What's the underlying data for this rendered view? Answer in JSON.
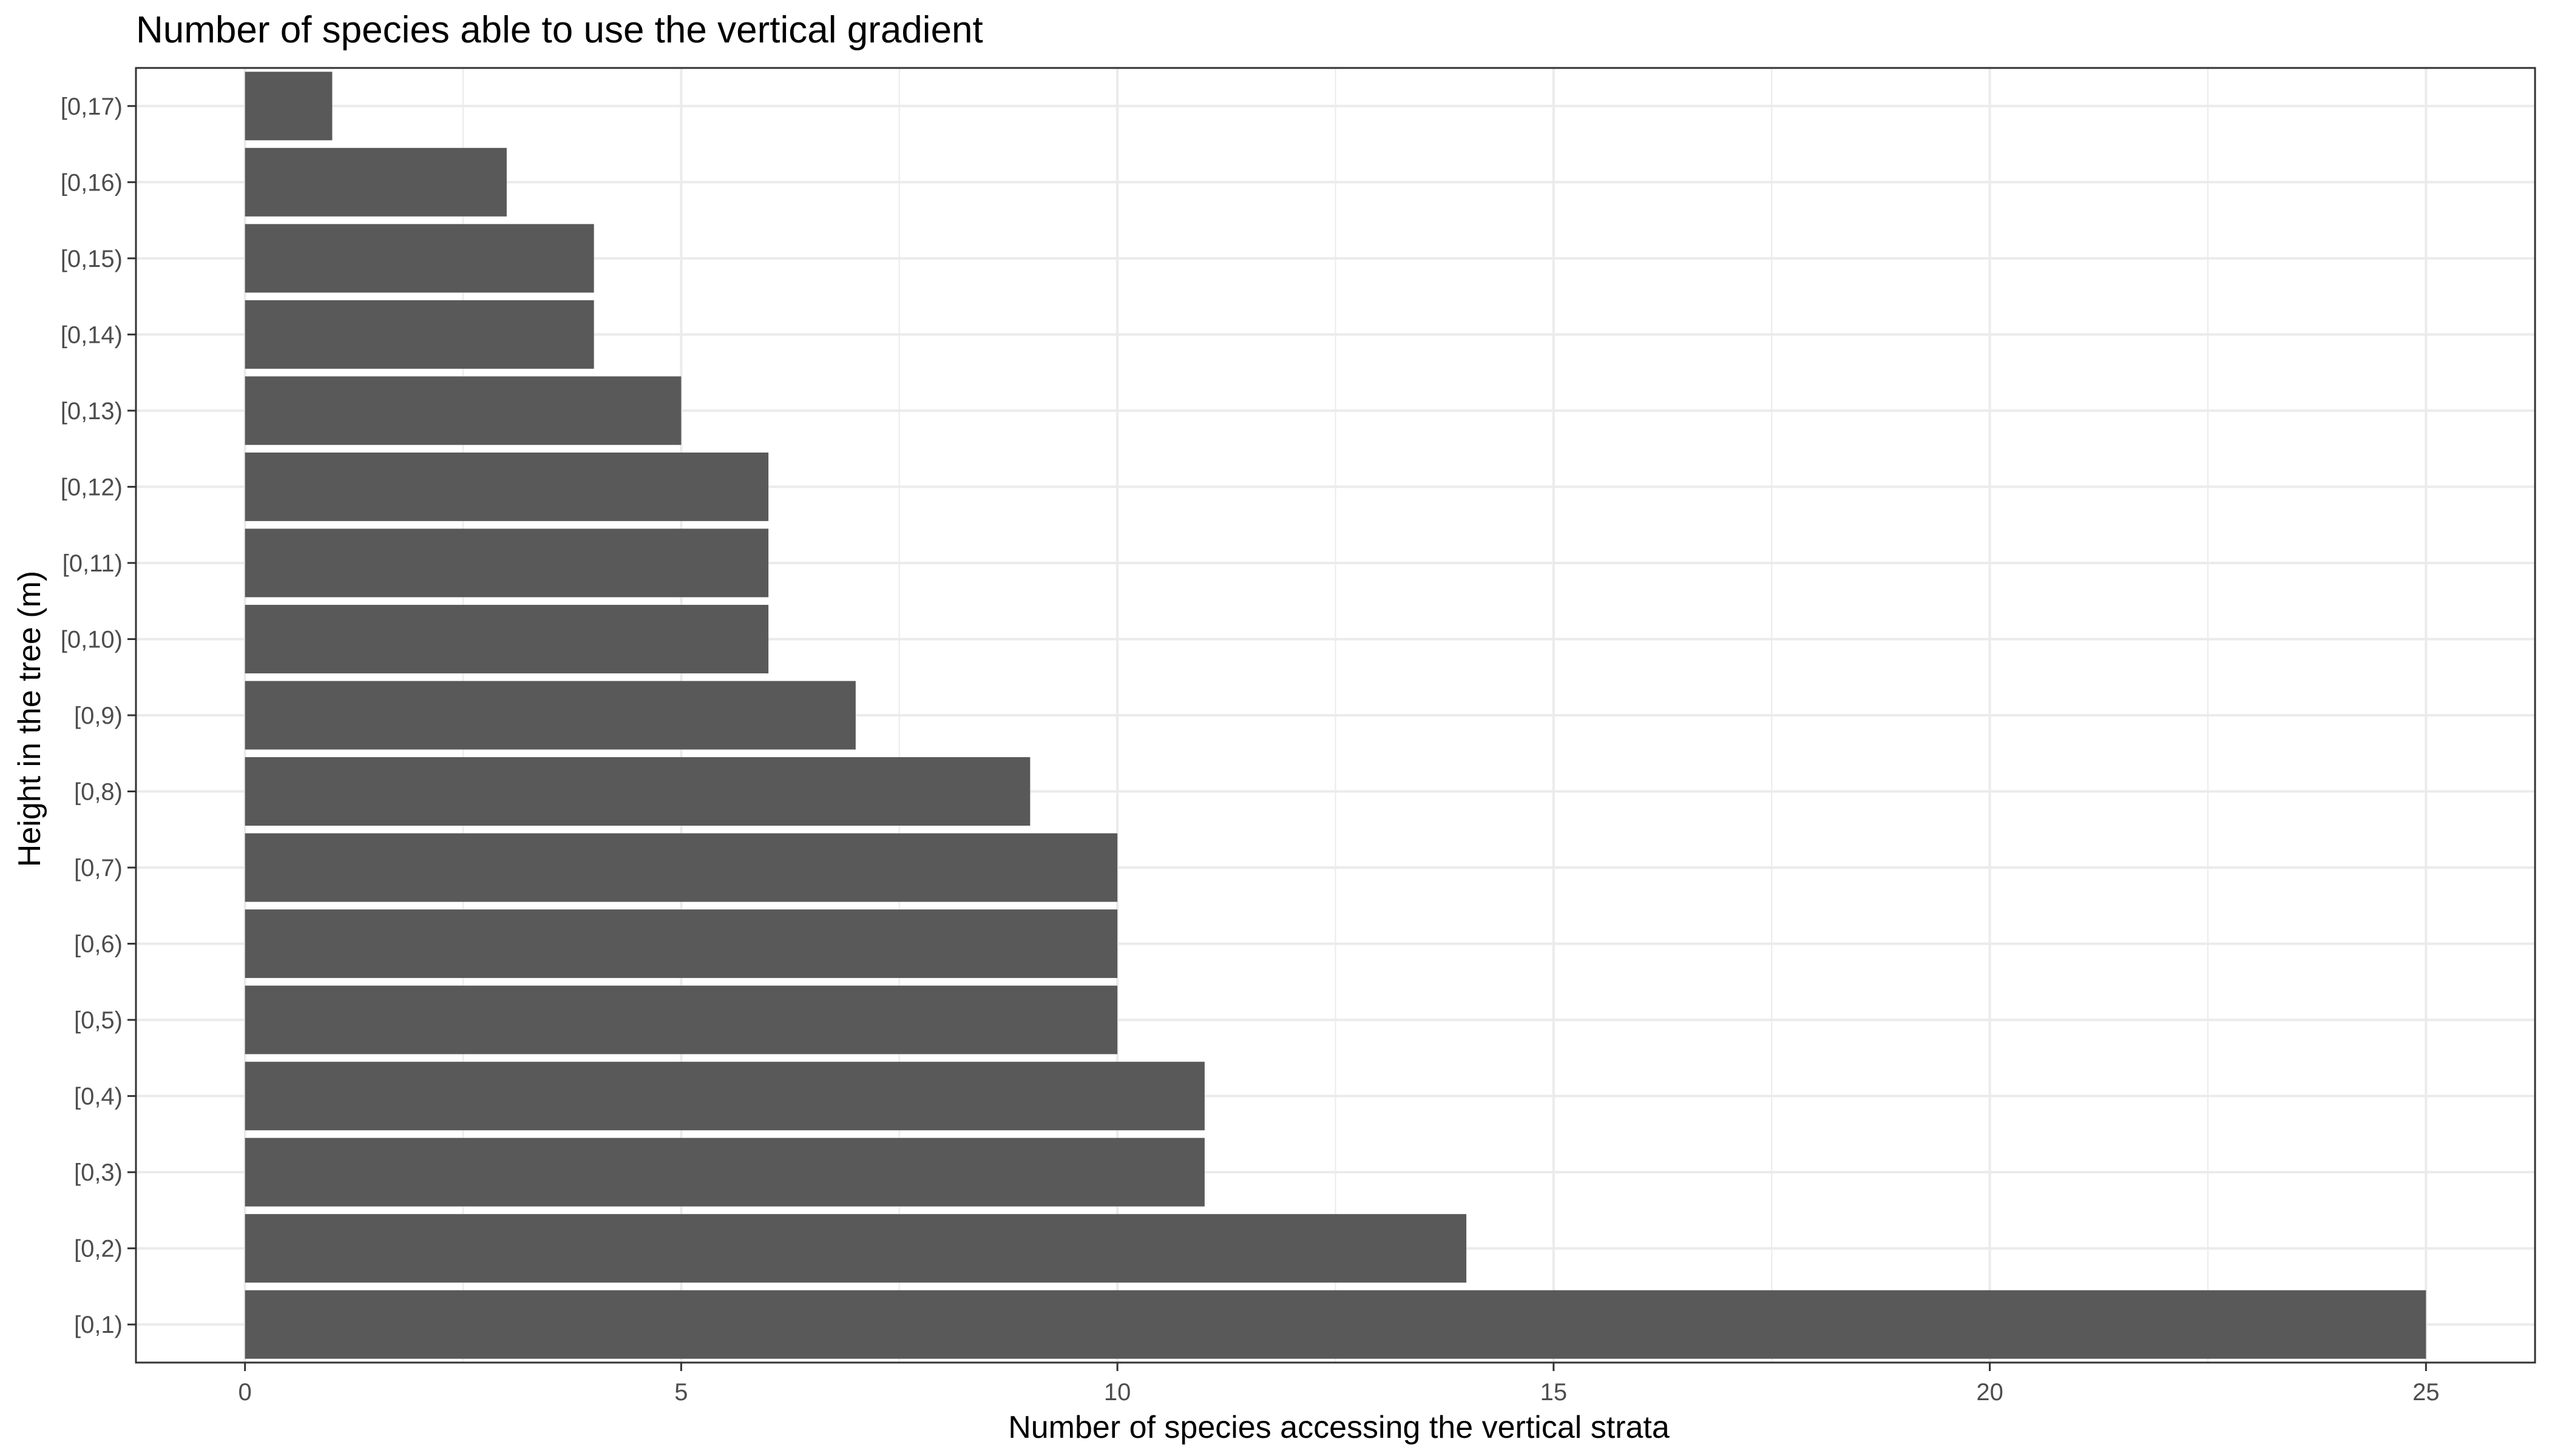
{
  "chart_data": {
    "type": "bar",
    "orientation": "horizontal",
    "title": "Number of species able to use the vertical gradient",
    "xlabel": "Number of species accessing the vertical strata",
    "ylabel": "Height in the tree (m)",
    "xlim": [
      -1.25,
      26.25
    ],
    "xticks": [
      0,
      5,
      10,
      15,
      20,
      25
    ],
    "categories": [
      "[0,1)",
      "[0,2)",
      "[0,3)",
      "[0,4)",
      "[0,5)",
      "[0,6)",
      "[0,7)",
      "[0,8)",
      "[0,9)",
      "[0,10)",
      "[0,11)",
      "[0,12)",
      "[0,13)",
      "[0,14)",
      "[0,15)",
      "[0,16)",
      "[0,17)"
    ],
    "values": [
      25,
      14,
      11,
      11,
      10,
      10,
      10,
      9,
      7,
      6,
      6,
      6,
      5,
      4,
      4,
      3,
      1
    ],
    "grid": true,
    "legend": "none",
    "bar_color": "#595959",
    "grid_color": "#ebebeb",
    "panel_border_color": "#333333"
  }
}
